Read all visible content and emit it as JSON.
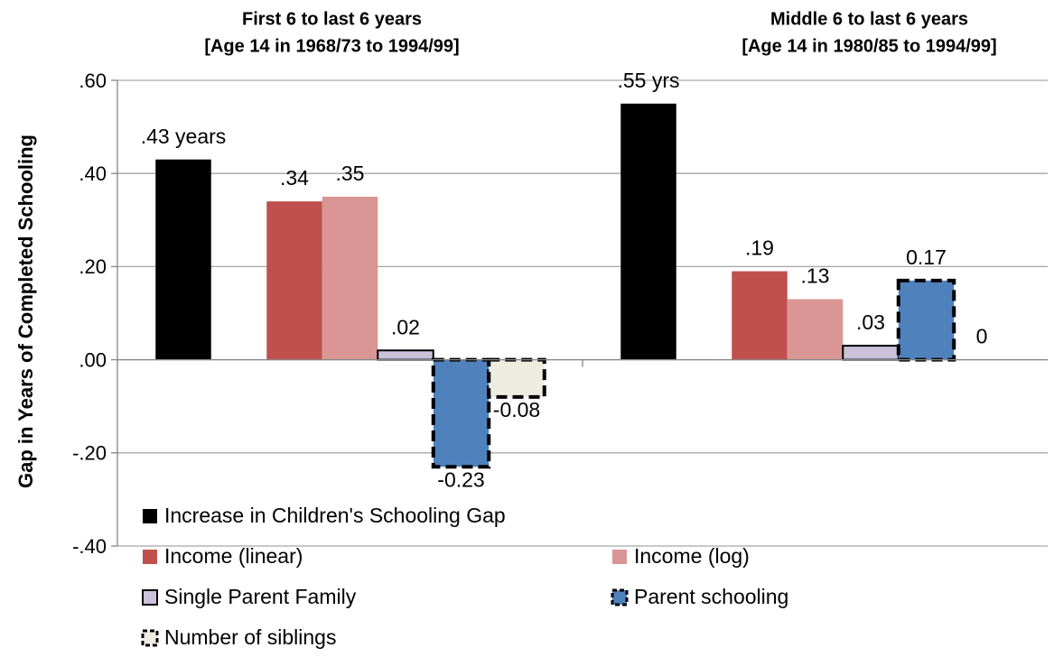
{
  "chart_data": {
    "type": "bar",
    "y_label": "Gap in Years of Completed Schooling",
    "categories": [
      [
        "First 6 to last 6 years",
        "[Age 14 in 1968/73 to 1994/99]"
      ],
      [
        "Middle 6 to last 6 years",
        "[Age 14 in 1980/85 to 1994/99]"
      ]
    ],
    "series": [
      {
        "name": "Increase in Children's Schooling Gap",
        "color": "#000000",
        "outline": "none",
        "values": [
          0.43,
          0.55
        ],
        "value_labels": [
          ".43 years",
          ".55 yrs"
        ]
      },
      {
        "name": "Income (linear)",
        "color": "#c0504d",
        "outline": "none",
        "values": [
          0.34,
          0.19
        ],
        "value_labels": [
          ".34",
          ".19"
        ]
      },
      {
        "name": "Income (log)",
        "color": "#d99694",
        "outline": "none",
        "values": [
          0.35,
          0.13
        ],
        "value_labels": [
          ".35",
          ".13"
        ]
      },
      {
        "name": "Single Parent Family",
        "color": "#ccc1da",
        "outline": "solid",
        "values": [
          0.02,
          0.03
        ],
        "value_labels": [
          ".02",
          ".03"
        ]
      },
      {
        "name": "Parent schooling",
        "color": "#4f81bd",
        "outline": "dashed",
        "values": [
          -0.23,
          0.17
        ],
        "value_labels": [
          "-0.23",
          "0.17"
        ]
      },
      {
        "name": "Number of siblings",
        "color": "#eeece1",
        "outline": "dashed",
        "values": [
          -0.08,
          0
        ],
        "value_labels": [
          "-0.08",
          "0"
        ]
      }
    ],
    "ylim": [
      -0.4,
      0.6
    ],
    "yticks": [
      {
        "value": -0.4,
        "label": "-.40"
      },
      {
        "value": -0.2,
        "label": "-.20"
      },
      {
        "value": 0,
        "label": ".00"
      },
      {
        "value": 0.2,
        "label": ".20"
      },
      {
        "value": 0.4,
        "label": ".40"
      },
      {
        "value": 0.6,
        "label": ".60"
      }
    ],
    "grid": true,
    "legend": "bottom-left"
  }
}
